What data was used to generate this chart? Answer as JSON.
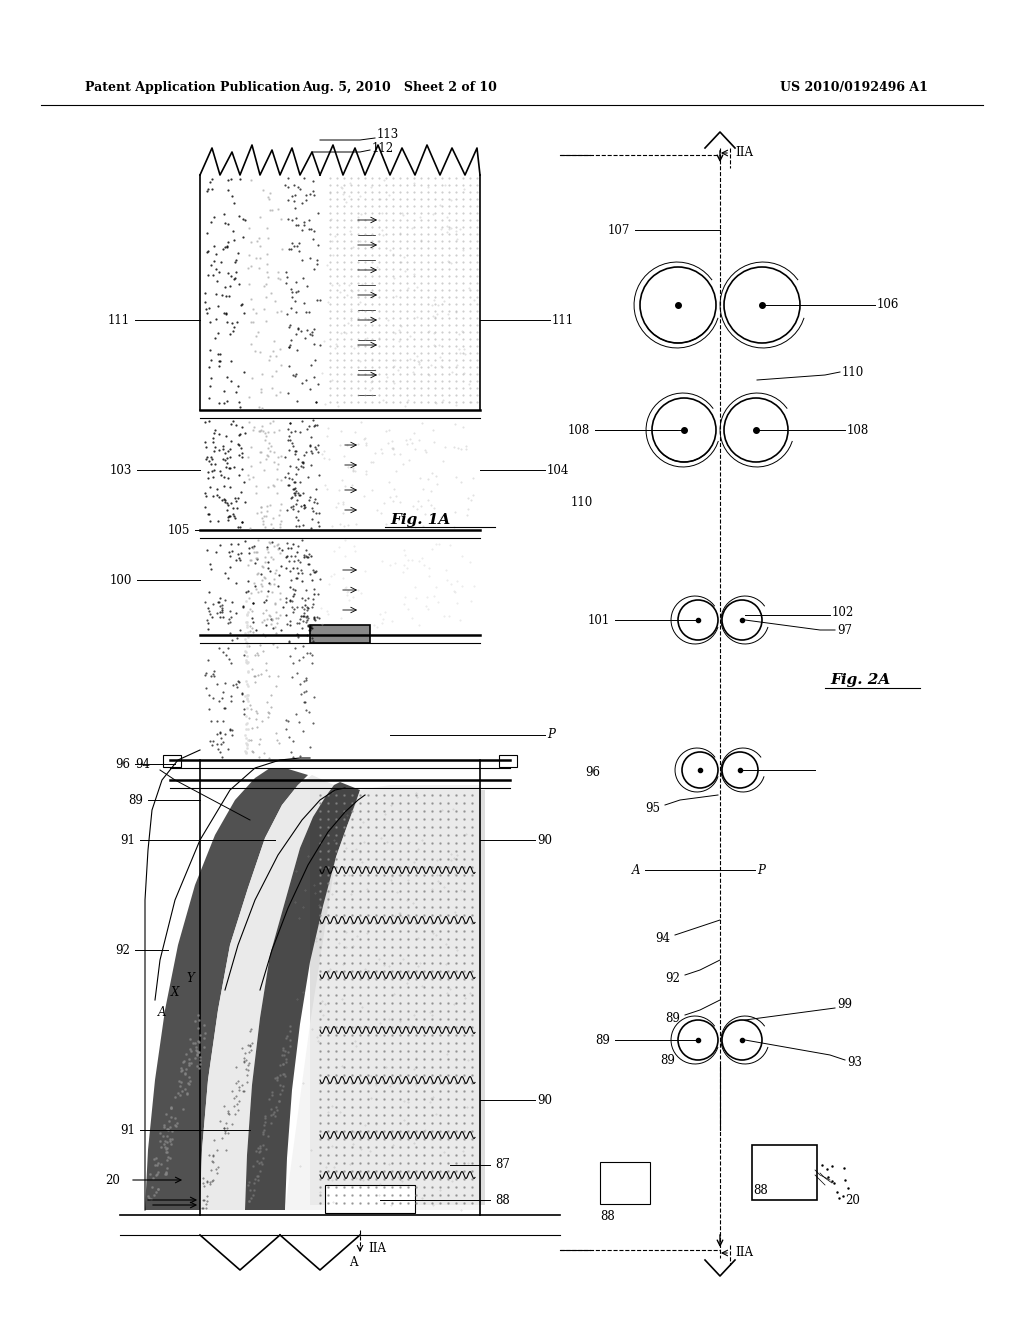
{
  "header_left": "Patent Application Publication",
  "header_center": "Aug. 5, 2010   Sheet 2 of 10",
  "header_right": "US 2010/0192496 A1",
  "fig1a_label": "Fig. 1A",
  "fig2a_label": "Fig. 2A",
  "background_color": "#ffffff",
  "line_color": "#000000",
  "light_gray": "#d0d0d0",
  "medium_gray": "#a0a0a0",
  "dark_gray": "#606060",
  "dot_pattern": "#888888",
  "labels": {
    "20": [
      20,
      "20"
    ],
    "87": [
      87,
      "87"
    ],
    "88": [
      88,
      "88"
    ],
    "89": [
      89,
      "89"
    ],
    "90": [
      90,
      "90"
    ],
    "91": [
      91,
      "91"
    ],
    "92": [
      92,
      "92"
    ],
    "93": [
      93,
      "93"
    ],
    "94": [
      94,
      "94"
    ],
    "95": [
      95,
      "95"
    ],
    "96": [
      96,
      "96"
    ],
    "97": [
      97,
      "97"
    ],
    "99": [
      99,
      "99"
    ],
    "100": [
      100,
      "100"
    ],
    "101": [
      101,
      "101"
    ],
    "102": [
      102,
      "102"
    ],
    "103": [
      103,
      "103"
    ],
    "104": [
      104,
      "104"
    ],
    "105": [
      105,
      "105"
    ],
    "106": [
      106,
      "106"
    ],
    "107": [
      107,
      "107"
    ],
    "108": [
      108,
      "108"
    ],
    "110": [
      110,
      "110"
    ],
    "111": [
      111,
      "111"
    ],
    "112": [
      112,
      "112"
    ],
    "113": [
      113,
      "113"
    ],
    "P_label": "P",
    "A_label": "A",
    "X_label": "X",
    "Y_label": "Y",
    "IIA_label": "IIA"
  }
}
